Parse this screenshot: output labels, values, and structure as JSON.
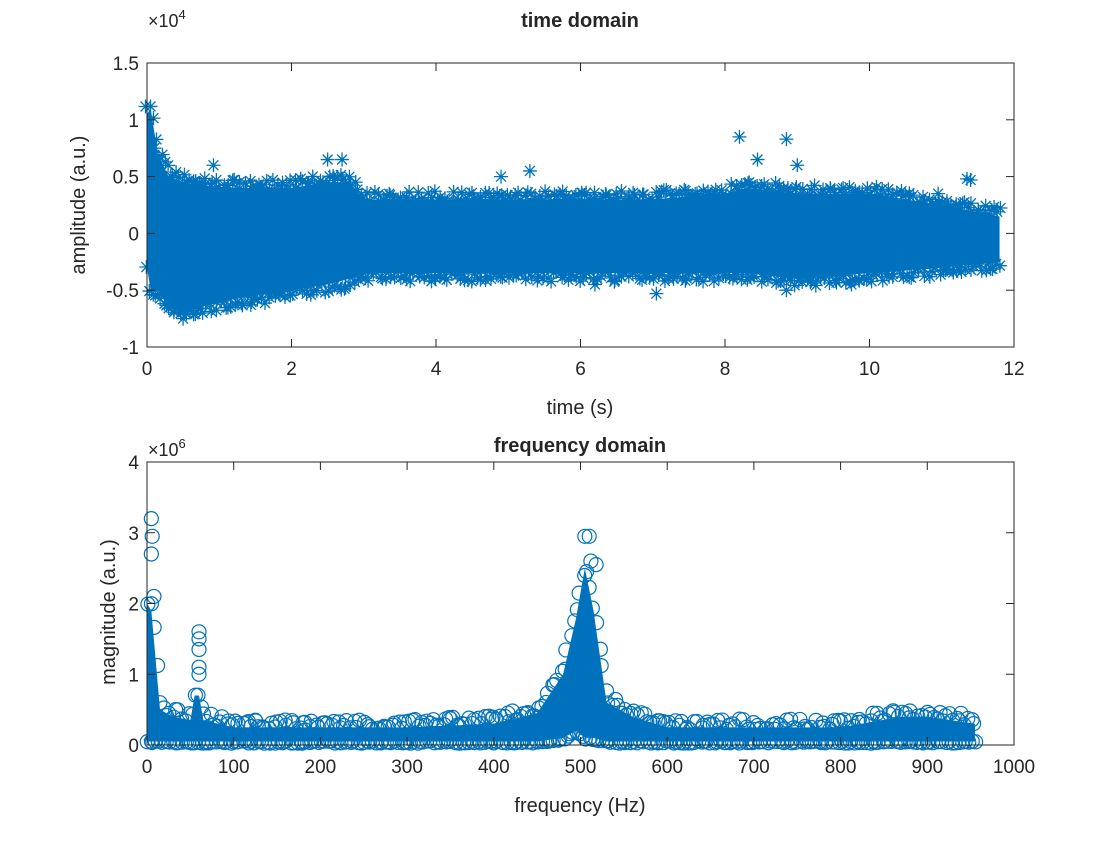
{
  "color": "#0072BD",
  "chart_data": [
    {
      "type": "scatter",
      "title": "time domain",
      "xlabel": "time (s)",
      "ylabel": "amplitude (a.u.)",
      "y_exponent_label": "×10",
      "y_exponent": "4",
      "marker": "asterisk",
      "xlim": [
        0,
        12
      ],
      "ylim": [
        -1,
        1.5
      ],
      "xticks": [
        "0",
        "2",
        "4",
        "6",
        "8",
        "10",
        "12"
      ],
      "yticks": [
        "-1",
        "-0.5",
        "0",
        "0.5",
        "1",
        "1.5"
      ],
      "xtick_values": [
        0,
        2,
        4,
        6,
        8,
        10,
        12
      ],
      "ytick_values": [
        -1,
        -0.5,
        0,
        0.5,
        1,
        1.5
      ],
      "envelope": {
        "x": [
          0,
          0.05,
          0.15,
          0.3,
          0.5,
          1,
          2,
          2.5,
          2.8,
          3,
          4,
          6,
          7,
          8,
          8.3,
          9,
          10,
          11,
          11.8
        ],
        "ymin": [
          -0.3,
          -0.5,
          -0.5,
          -0.65,
          -0.7,
          -0.6,
          -0.5,
          -0.45,
          -0.4,
          -0.35,
          -0.35,
          -0.35,
          -0.35,
          -0.35,
          -0.35,
          -0.4,
          -0.35,
          -0.3,
          -0.25
        ],
        "ymax": [
          1.05,
          1.1,
          0.7,
          0.5,
          0.45,
          0.4,
          0.4,
          0.45,
          0.45,
          0.3,
          0.3,
          0.3,
          0.3,
          0.35,
          0.4,
          0.35,
          0.35,
          0.25,
          0.15
        ]
      },
      "outliers": [
        [
          0.1,
          0.75
        ],
        [
          0.92,
          0.6
        ],
        [
          2.5,
          0.65
        ],
        [
          2.7,
          0.65
        ],
        [
          4.9,
          0.5
        ],
        [
          5.3,
          0.55
        ],
        [
          7.05,
          -0.53
        ],
        [
          8.2,
          0.85
        ],
        [
          8.45,
          0.65
        ],
        [
          8.85,
          0.83
        ],
        [
          9.0,
          0.6
        ],
        [
          10.95,
          0.35
        ],
        [
          11.35,
          0.48
        ],
        [
          11.4,
          0.47
        ],
        [
          0.5,
          -0.75
        ],
        [
          6.2,
          -0.45
        ],
        [
          8.85,
          -0.5
        ],
        [
          9.75,
          -0.45
        ]
      ]
    },
    {
      "type": "scatter",
      "title": "frequency domain",
      "xlabel": "frequency (Hz)",
      "ylabel": "magnitude (a.u.)",
      "y_exponent_label": "×10",
      "y_exponent": "6",
      "marker": "circle",
      "xlim": [
        0,
        1000
      ],
      "ylim": [
        0,
        4
      ],
      "xticks": [
        "0",
        "100",
        "200",
        "300",
        "400",
        "500",
        "600",
        "700",
        "800",
        "900",
        "1000"
      ],
      "yticks": [
        "0",
        "1",
        "2",
        "3",
        "4"
      ],
      "xtick_values": [
        0,
        100,
        200,
        300,
        400,
        500,
        600,
        700,
        800,
        900,
        1000
      ],
      "ytick_values": [
        0,
        1,
        2,
        3,
        4
      ],
      "envelope": {
        "x": [
          0,
          5,
          10,
          15,
          30,
          50,
          55,
          60,
          65,
          100,
          300,
          400,
          450,
          480,
          495,
          505,
          515,
          530,
          560,
          600,
          800,
          870,
          900,
          955
        ],
        "ymin": [
          0.05,
          0.05,
          0.05,
          0.05,
          0.05,
          0.05,
          0.05,
          0.05,
          0.05,
          0.05,
          0.05,
          0.05,
          0.05,
          0.1,
          0.2,
          0.1,
          0.1,
          0.05,
          0.05,
          0.05,
          0.05,
          0.05,
          0.05,
          0.05
        ],
        "ymax": [
          2.0,
          1.9,
          1.2,
          0.5,
          0.4,
          0.35,
          0.7,
          0.7,
          0.35,
          0.25,
          0.25,
          0.3,
          0.45,
          1.0,
          1.8,
          2.5,
          1.9,
          0.6,
          0.4,
          0.25,
          0.25,
          0.4,
          0.4,
          0.3
        ]
      },
      "outliers": [
        [
          5,
          3.2
        ],
        [
          6,
          2.95
        ],
        [
          5,
          2.7
        ],
        [
          8,
          2.1
        ],
        [
          60,
          1.6
        ],
        [
          60,
          1.5
        ],
        [
          60,
          1.35
        ],
        [
          60,
          1.1
        ],
        [
          60,
          1.0
        ],
        [
          505,
          2.95
        ],
        [
          510,
          2.95
        ],
        [
          512,
          2.6
        ],
        [
          518,
          2.55
        ],
        [
          350,
          0.37
        ],
        [
          425,
          0.35
        ],
        [
          450,
          0.38
        ],
        [
          125,
          0.35
        ],
        [
          182,
          0.32
        ]
      ]
    }
  ]
}
